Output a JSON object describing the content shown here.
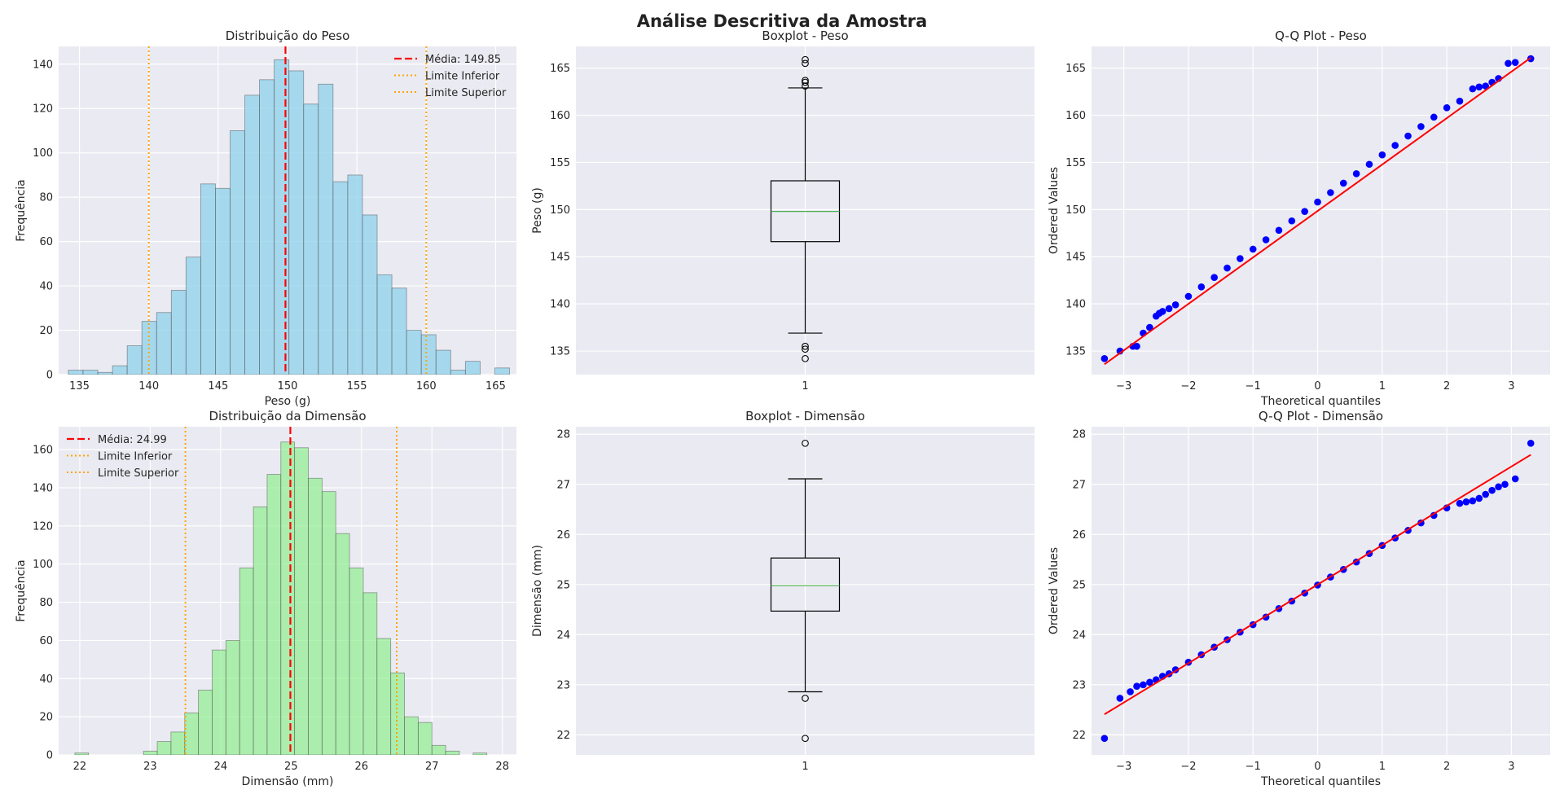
{
  "suptitle": "Análise Descritiva da Amostra",
  "colors": {
    "plot_bg": "#eaeaf2",
    "grid": "#ffffff",
    "hist_weight": "#87ceeb",
    "hist_dim": "#90ee90",
    "bar_edge": "#555555",
    "mean_line": "#ff0000",
    "limit_line": "#ffa500",
    "median_line": "#4caf50",
    "qq_points": "#0000ff",
    "qq_line": "#ff0000"
  },
  "chart_data": [
    {
      "id": "hist_peso",
      "type": "bar",
      "title": "Distribuição do Peso",
      "xlabel": "Peso (g)",
      "ylabel": "Frequência",
      "xlim": [
        133.5,
        166.5
      ],
      "ylim": [
        0,
        148
      ],
      "xticks": [
        135,
        140,
        145,
        150,
        155,
        160,
        165
      ],
      "yticks": [
        0,
        20,
        40,
        60,
        80,
        100,
        120,
        140
      ],
      "bin_start": 134.2,
      "bin_width": 1.06,
      "values": [
        2,
        2,
        1,
        4,
        13,
        24,
        28,
        38,
        53,
        86,
        84,
        110,
        126,
        133,
        142,
        137,
        122,
        131,
        87,
        90,
        72,
        45,
        39,
        20,
        18,
        11,
        2,
        6,
        0,
        3
      ],
      "mean": 149.85,
      "lower_limit": 140,
      "upper_limit": 160,
      "legend": {
        "position": "upper right",
        "entries": [
          "Média: 149.85",
          "Limite Inferior",
          "Limite Superior"
        ]
      },
      "grid": true
    },
    {
      "id": "box_peso",
      "type": "boxplot",
      "title": "Boxplot - Peso",
      "xlabel": "",
      "ylabel": "Peso (g)",
      "ylim": [
        132.5,
        167.3
      ],
      "yticks": [
        135,
        140,
        145,
        150,
        155,
        160,
        165
      ],
      "xticklabels": [
        "1"
      ],
      "q1": 146.6,
      "median": 149.8,
      "q3": 153.05,
      "whisker_low": 136.9,
      "whisker_high": 162.9,
      "outliers": [
        135.2,
        135.5,
        134.2,
        163.1,
        163.5,
        163.7,
        165.5,
        165.9
      ],
      "grid": true
    },
    {
      "id": "qq_peso",
      "type": "scatter",
      "title": "Q-Q Plot - Peso",
      "xlabel": "Theoretical quantiles",
      "ylabel": "Ordered Values",
      "xlim": [
        -3.5,
        3.6
      ],
      "ylim": [
        132.5,
        167.3
      ],
      "xticks": [
        -3,
        -2,
        -1,
        0,
        1,
        2,
        3
      ],
      "yticks": [
        135,
        140,
        145,
        150,
        155,
        160,
        165
      ],
      "line": {
        "x": [
          -3.3,
          3.3
        ],
        "y": [
          133.6,
          166.1
        ]
      },
      "points_x": [
        -3.3,
        -3.06,
        -2.86,
        -2.8,
        -2.7,
        -2.6,
        -2.5,
        -2.45,
        -2.4,
        -2.3,
        -2.2,
        -2.0,
        -1.8,
        -1.6,
        -1.4,
        -1.2,
        -1.0,
        -0.8,
        -0.6,
        -0.4,
        -0.2,
        0.0,
        0.2,
        0.4,
        0.6,
        0.8,
        1.0,
        1.2,
        1.4,
        1.6,
        1.8,
        2.0,
        2.2,
        2.4,
        2.5,
        2.6,
        2.7,
        2.8,
        2.95,
        3.06,
        3.3
      ],
      "points_y": [
        134.2,
        135.0,
        135.5,
        135.5,
        136.9,
        137.5,
        138.7,
        139.0,
        139.2,
        139.5,
        139.9,
        140.8,
        141.8,
        142.8,
        143.8,
        144.8,
        145.8,
        146.8,
        147.8,
        148.8,
        149.8,
        150.8,
        151.8,
        152.8,
        153.8,
        154.8,
        155.8,
        156.8,
        157.8,
        158.8,
        159.8,
        160.8,
        161.5,
        162.8,
        163.0,
        163.1,
        163.5,
        163.9,
        165.5,
        165.6,
        166.0
      ],
      "grid": true
    },
    {
      "id": "hist_dim",
      "type": "bar",
      "title": "Distribuição da Dimensão",
      "xlabel": "Dimensão (mm)",
      "ylabel": "Frequência",
      "xlim": [
        21.7,
        28.2
      ],
      "ylim": [
        0,
        172
      ],
      "xticks": [
        22,
        23,
        24,
        25,
        26,
        27,
        28
      ],
      "yticks": [
        0,
        20,
        40,
        60,
        80,
        100,
        120,
        140,
        160
      ],
      "bin_start": 21.93,
      "bin_width": 0.195,
      "values": [
        1,
        0,
        0,
        0,
        0,
        2,
        7,
        12,
        22,
        34,
        55,
        60,
        98,
        130,
        147,
        164,
        161,
        145,
        138,
        116,
        98,
        85,
        61,
        43,
        20,
        17,
        5,
        2,
        0,
        1
      ],
      "mean": 24.99,
      "lower_limit": 23.5,
      "upper_limit": 26.5,
      "legend": {
        "position": "upper left",
        "entries": [
          "Média: 24.99",
          "Limite Inferior",
          "Limite Superior"
        ]
      },
      "grid": true
    },
    {
      "id": "box_dim",
      "type": "boxplot",
      "title": "Boxplot - Dimensão",
      "xlabel": "",
      "ylabel": "Dimensão (mm)",
      "ylim": [
        21.6,
        28.15
      ],
      "yticks": [
        22,
        23,
        24,
        25,
        26,
        27,
        28
      ],
      "xticklabels": [
        "1"
      ],
      "q1": 24.47,
      "median": 24.98,
      "q3": 25.53,
      "whisker_low": 22.86,
      "whisker_high": 27.11,
      "outliers": [
        22.73,
        21.93,
        27.82
      ],
      "grid": true
    },
    {
      "id": "qq_dim",
      "type": "scatter",
      "title": "Q-Q Plot - Dimensão",
      "xlabel": "Theoretical quantiles",
      "ylabel": "Ordered Values",
      "xlim": [
        -3.5,
        3.6
      ],
      "ylim": [
        21.6,
        28.15
      ],
      "xticks": [
        -3,
        -2,
        -1,
        0,
        1,
        2,
        3
      ],
      "yticks": [
        22,
        23,
        24,
        25,
        26,
        27,
        28
      ],
      "line": {
        "x": [
          -3.3,
          3.3
        ],
        "y": [
          22.41,
          27.59
        ]
      },
      "points_x": [
        -3.3,
        -3.06,
        -2.9,
        -2.8,
        -2.7,
        -2.6,
        -2.5,
        -2.4,
        -2.3,
        -2.2,
        -2.0,
        -1.8,
        -1.6,
        -1.4,
        -1.2,
        -1.0,
        -0.8,
        -0.6,
        -0.4,
        -0.2,
        0.0,
        0.2,
        0.4,
        0.6,
        0.8,
        1.0,
        1.2,
        1.4,
        1.6,
        1.8,
        2.0,
        2.2,
        2.3,
        2.4,
        2.5,
        2.6,
        2.7,
        2.8,
        2.9,
        3.06,
        3.3
      ],
      "points_y": [
        21.93,
        22.73,
        22.86,
        22.97,
        23.0,
        23.05,
        23.1,
        23.17,
        23.22,
        23.3,
        23.45,
        23.6,
        23.75,
        23.9,
        24.05,
        24.2,
        24.35,
        24.52,
        24.67,
        24.83,
        24.99,
        25.15,
        25.3,
        25.45,
        25.62,
        25.78,
        25.93,
        26.08,
        26.23,
        26.38,
        26.53,
        26.62,
        26.65,
        26.67,
        26.72,
        26.8,
        26.88,
        26.95,
        27.0,
        27.11,
        27.82
      ],
      "grid": true
    }
  ]
}
